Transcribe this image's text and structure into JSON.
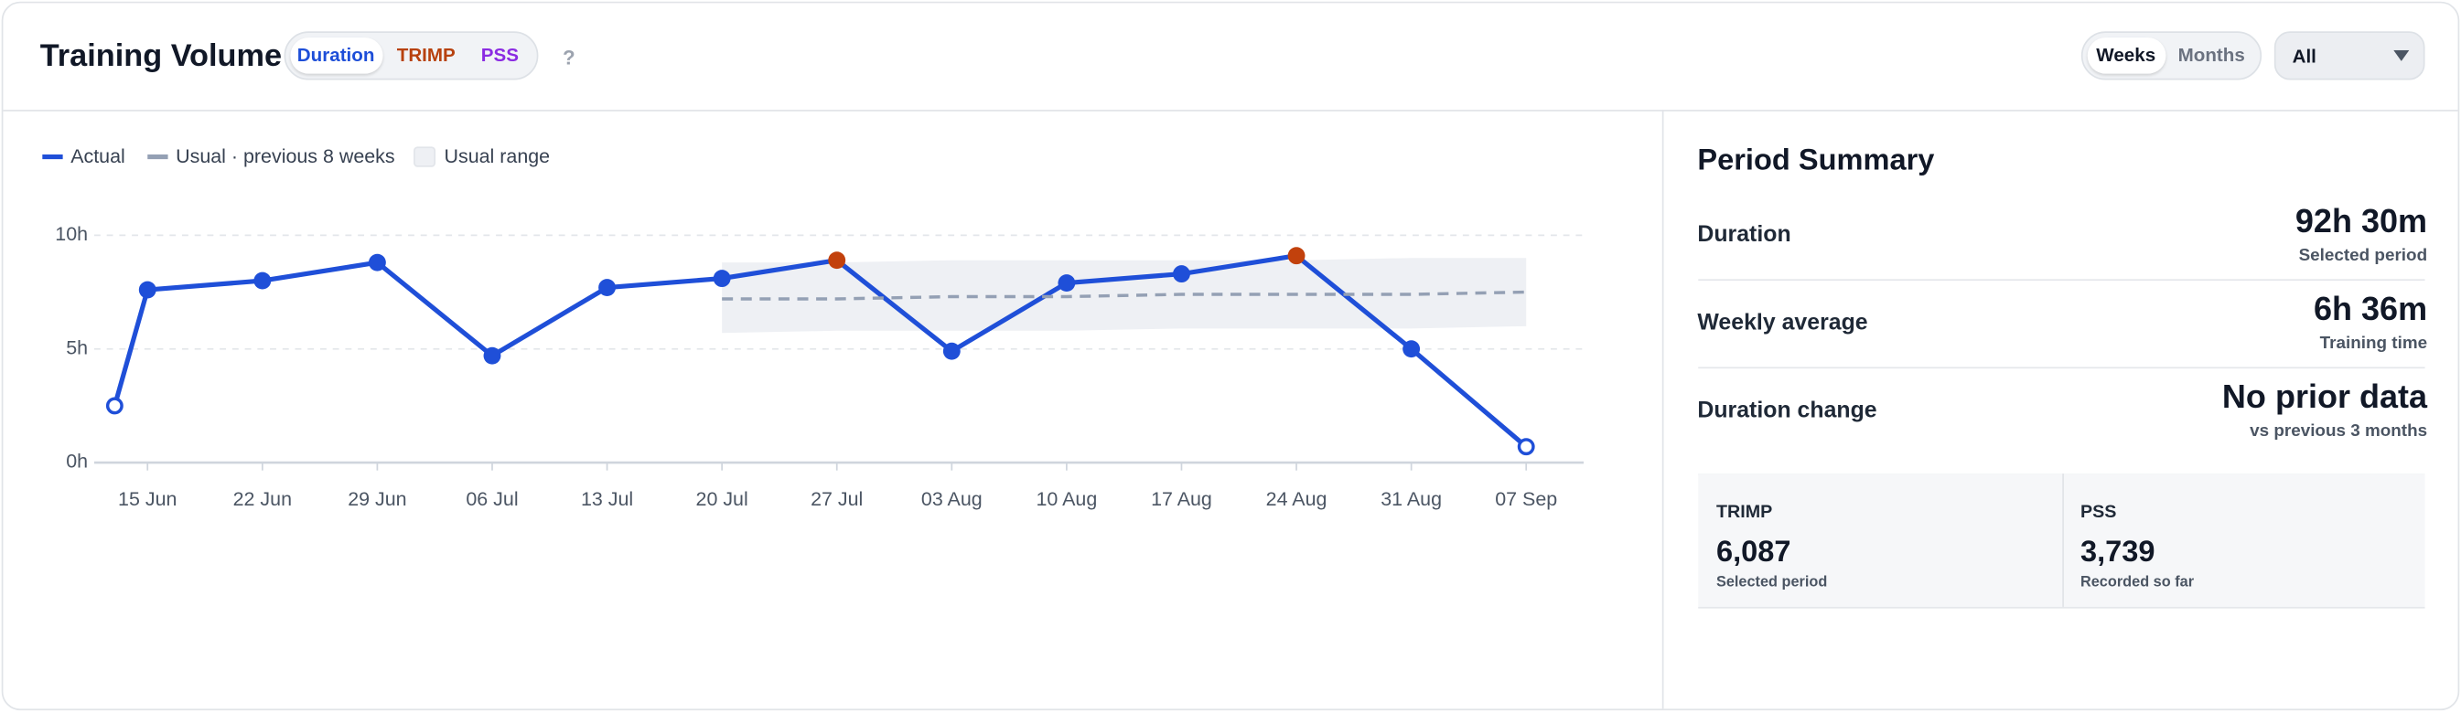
{
  "header": {
    "title": "Training Volume",
    "tabs": [
      "Duration",
      "TRIMP",
      "PSS"
    ],
    "help": "?",
    "periods": [
      "Weeks",
      "Months"
    ],
    "filter": "All"
  },
  "chart_data": {
    "type": "line",
    "grid": true,
    "xlim": [
      -3.25,
      87.5
    ],
    "xticks": [
      {
        "value": 0,
        "label": "15 Jun"
      },
      {
        "value": 7,
        "label": "22 Jun"
      },
      {
        "value": 14,
        "label": "29 Jun"
      },
      {
        "value": 21,
        "label": "06 Jul"
      },
      {
        "value": 28,
        "label": "13 Jul"
      },
      {
        "value": 35,
        "label": "20 Jul"
      },
      {
        "value": 42,
        "label": "27 Jul"
      },
      {
        "value": 49,
        "label": "03 Aug"
      },
      {
        "value": 56,
        "label": "10 Aug"
      },
      {
        "value": 63,
        "label": "17 Aug"
      },
      {
        "value": 70,
        "label": "24 Aug"
      },
      {
        "value": 77,
        "label": "31 Aug"
      },
      {
        "value": 84,
        "label": "07 Sep"
      }
    ],
    "ylim": [
      0,
      10
    ],
    "yticks": [
      {
        "value": 0,
        "label": "0h"
      },
      {
        "value": 5,
        "label": "5h"
      },
      {
        "value": 10,
        "label": "10h"
      }
    ],
    "series": [
      {
        "name": "Actual",
        "color": "#1f4fd8",
        "x": [
          -2,
          0,
          7,
          14,
          21,
          28,
          35,
          42,
          49,
          56,
          63,
          70,
          77,
          84
        ],
        "values": [
          2.5,
          7.6,
          8.0,
          8.8,
          4.7,
          7.7,
          8.1,
          8.9,
          4.9,
          7.9,
          8.3,
          9.1,
          5.0,
          0.7
        ],
        "point_colors": [
          "#1f4fd8",
          "#1f4fd8",
          "#1f4fd8",
          "#1f4fd8",
          "#1f4fd8",
          "#1f4fd8",
          "#1f4fd8",
          "#c2410c",
          "#1f4fd8",
          "#1f4fd8",
          "#1f4fd8",
          "#c2410c",
          "#1f4fd8",
          "#1f4fd8"
        ],
        "hollow": [
          true,
          false,
          false,
          false,
          false,
          false,
          false,
          false,
          false,
          false,
          false,
          false,
          false,
          true
        ]
      },
      {
        "name": "Usual · previous 8 weeks",
        "color": "#94a0b4",
        "dashed": true,
        "x": [
          35,
          42,
          49,
          56,
          63,
          70,
          77,
          84
        ],
        "values": [
          7.2,
          7.2,
          7.3,
          7.3,
          7.4,
          7.4,
          7.4,
          7.5
        ]
      }
    ],
    "range": {
      "name": "Usual range",
      "color": "#eef0f4",
      "x": [
        35,
        42,
        49,
        56,
        63,
        70,
        77,
        84
      ],
      "lower": [
        5.7,
        5.8,
        5.8,
        5.8,
        5.9,
        5.9,
        5.9,
        6.0
      ],
      "upper": [
        8.8,
        8.8,
        8.9,
        8.9,
        8.9,
        8.9,
        9.0,
        9.0
      ]
    }
  },
  "summary": {
    "title": "Period Summary",
    "rows": [
      {
        "label": "Duration",
        "value": "92h 30m",
        "note": "Selected period"
      },
      {
        "label": "Weekly average",
        "value": "6h 36m",
        "note": "Training time"
      },
      {
        "label": "Duration change",
        "value": "No prior data",
        "note": "vs previous 3 months"
      }
    ],
    "cards": [
      {
        "label": "TRIMP",
        "value": "6,087",
        "note": "Selected period"
      },
      {
        "label": "PSS",
        "value": "3,739",
        "note": "Recorded so far"
      }
    ]
  }
}
